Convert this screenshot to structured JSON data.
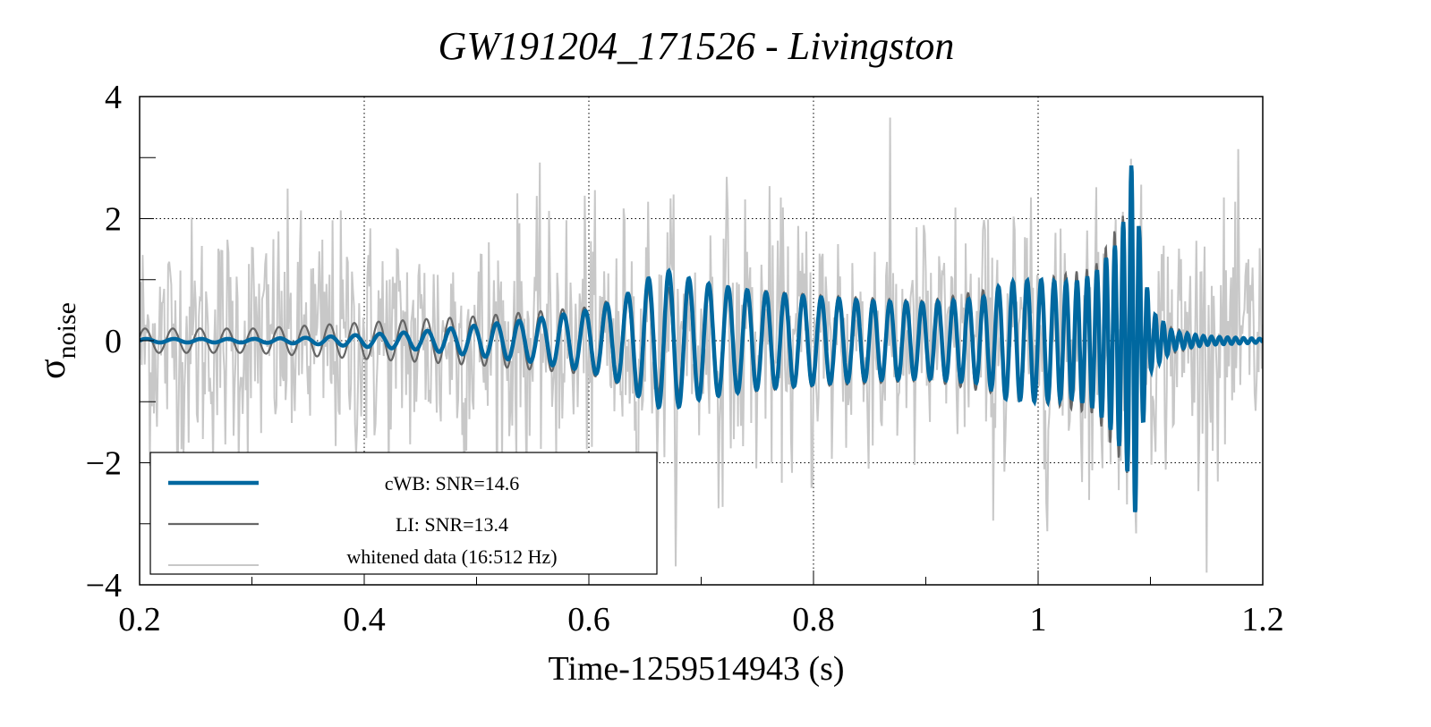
{
  "chart_data": {
    "type": "line",
    "title": "GW191204_171526 - Livingston",
    "xlabel": "Time-1259514943 (s)",
    "ylabel": "σ",
    "ylabel_subscript": "noise",
    "xlim": [
      0.2,
      1.2
    ],
    "ylim": [
      -4,
      4
    ],
    "xticks": [
      0.2,
      0.4,
      0.6,
      0.8,
      1.0,
      1.2
    ],
    "xtick_labels": [
      "0.2",
      "0.4",
      "0.6",
      "0.8",
      "1",
      "1.2"
    ],
    "yticks": [
      -4,
      -2,
      0,
      2,
      4
    ],
    "ytick_labels": [
      "−4",
      "−2",
      "0",
      "2",
      "4"
    ],
    "grid": true,
    "legend_position": "bottom-left",
    "series": [
      {
        "name": "cWB: SNR=14.6",
        "color": "#0068a0",
        "description_hint": "reconstructed chirp waveform; amplitude grows from ~0.05 near t=0.2 to ~1 at t≈0.65, ~1 from 0.95-1.05, peak ~2.6/-3.2 at t≈1.085, then rings down to ~0 after 1.1",
        "envelope": [
          [
            0.2,
            0.03
          ],
          [
            0.3,
            0.03
          ],
          [
            0.35,
            0.05
          ],
          [
            0.4,
            0.1
          ],
          [
            0.45,
            0.15
          ],
          [
            0.5,
            0.25
          ],
          [
            0.55,
            0.35
          ],
          [
            0.6,
            0.5
          ],
          [
            0.63,
            0.7
          ],
          [
            0.65,
            1.0
          ],
          [
            0.67,
            1.15
          ],
          [
            0.7,
            0.95
          ],
          [
            0.75,
            0.8
          ],
          [
            0.8,
            0.72
          ],
          [
            0.85,
            0.65
          ],
          [
            0.9,
            0.62
          ],
          [
            0.95,
            0.7
          ],
          [
            0.97,
            0.95
          ],
          [
            1.0,
            1.0
          ],
          [
            1.03,
            0.95
          ],
          [
            1.05,
            1.1
          ],
          [
            1.07,
            1.6
          ],
          [
            1.08,
            2.2
          ],
          [
            1.085,
            2.9
          ],
          [
            1.09,
            1.8
          ],
          [
            1.1,
            0.5
          ],
          [
            1.12,
            0.15
          ],
          [
            1.15,
            0.07
          ],
          [
            1.2,
            0.03
          ]
        ],
        "frequency_hz": [
          [
            0.2,
            40
          ],
          [
            0.6,
            52
          ],
          [
            0.8,
            62
          ],
          [
            1.0,
            80
          ],
          [
            1.08,
            140
          ]
        ]
      },
      {
        "name": "LI: SNR=13.4",
        "color": "#666666",
        "envelope": [
          [
            0.2,
            0.2
          ],
          [
            0.3,
            0.2
          ],
          [
            0.4,
            0.3
          ],
          [
            0.5,
            0.4
          ],
          [
            0.6,
            0.55
          ],
          [
            0.65,
            0.85
          ],
          [
            0.7,
            0.9
          ],
          [
            0.8,
            0.75
          ],
          [
            0.9,
            0.65
          ],
          [
            1.0,
            1.0
          ],
          [
            1.05,
            1.2
          ],
          [
            1.08,
            2.2
          ],
          [
            1.09,
            1.5
          ],
          [
            1.1,
            0.3
          ],
          [
            1.15,
            0.07
          ],
          [
            1.2,
            0.03
          ]
        ]
      },
      {
        "name": "whitened data (16:512 Hz)",
        "color": "#c8c8c8",
        "noise_sigma": 1.0
      }
    ]
  }
}
